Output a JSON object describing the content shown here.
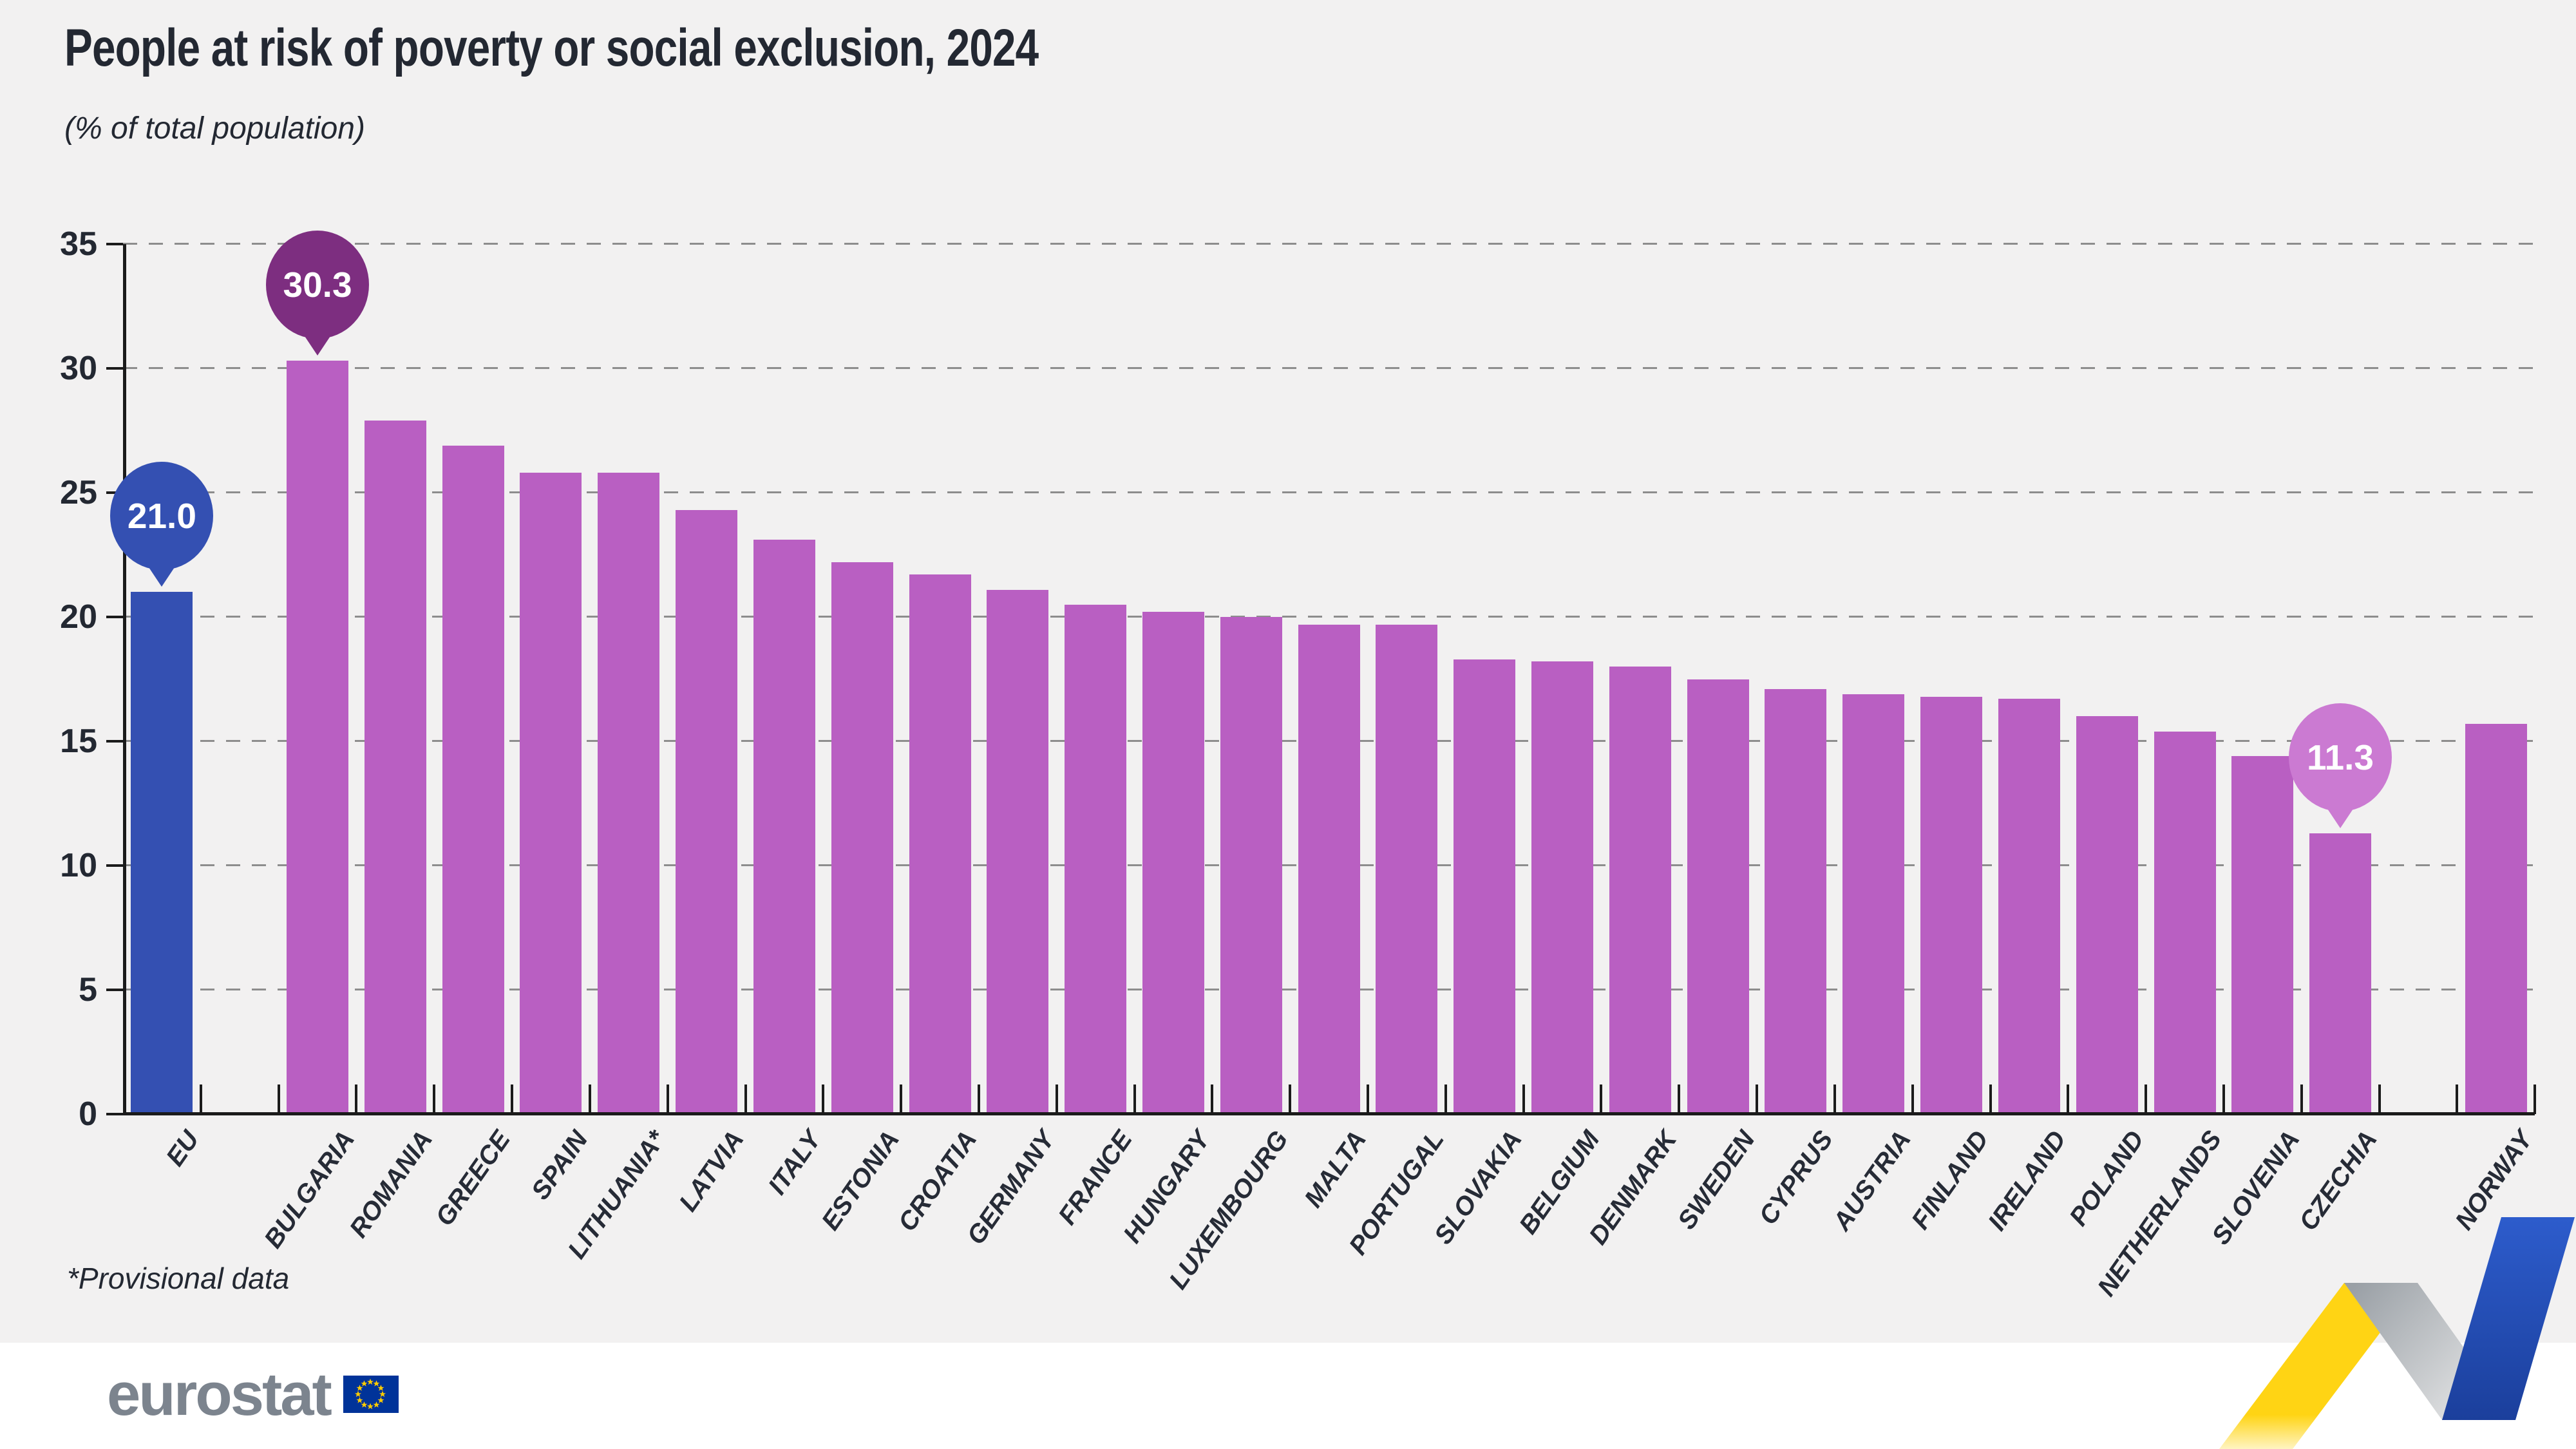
{
  "title": "People at risk of poverty or social exclusion, 2024",
  "subtitle": "(% of total population)",
  "footnote": "*Provisional data",
  "logo_text": "eurostat",
  "colors": {
    "background": "#f2f1f1",
    "bar": "#b95fc2",
    "eu_bar": "#3450b2",
    "callout_eu": "#3450b2",
    "callout_high": "#7d2e80",
    "callout_low": "#cb7ad2",
    "axis": "#1b1b1b",
    "grid": "#8d8d8d",
    "text": "#232832",
    "logo_grey": "#7c848e",
    "flag_blue": "#003399",
    "star_yellow": "#ffcc00",
    "ribbon_yellow": "#ffd414",
    "ribbon_grey": "#9aa0a6",
    "ribbon_blue": "#2d5ccc"
  },
  "chart_data": {
    "type": "bar",
    "title": "People at risk of poverty or social exclusion, 2024",
    "subtitle": "(% of total population)",
    "xlabel": "",
    "ylabel": "% of total population",
    "ylim": [
      0,
      35
    ],
    "yticks": [
      0,
      5,
      10,
      15,
      20,
      25,
      30,
      35
    ],
    "grid": "horizontal dashed",
    "legend": "none",
    "categories": [
      "EU",
      "BULGARIA",
      "ROMANIA",
      "GREECE",
      "SPAIN",
      "LITHUANIA*",
      "LATVIA",
      "ITALY",
      "ESTONIA",
      "CROATIA",
      "GERMANY",
      "FRANCE",
      "HUNGARY",
      "LUXEMBOURG",
      "MALTA",
      "PORTUGAL",
      "SLOVAKIA",
      "BELGIUM",
      "DENMARK",
      "SWEDEN",
      "CYPRUS",
      "AUSTRIA",
      "FINLAND",
      "IRELAND",
      "POLAND",
      "NETHERLANDS",
      "SLOVENIA",
      "CZECHIA",
      "NORWAY"
    ],
    "values": [
      21.0,
      30.3,
      27.9,
      26.9,
      25.8,
      25.8,
      24.3,
      23.1,
      22.2,
      21.7,
      21.1,
      20.5,
      20.2,
      20.0,
      19.7,
      19.7,
      18.3,
      18.2,
      18.0,
      17.5,
      17.1,
      16.9,
      16.8,
      16.7,
      16.0,
      15.4,
      14.4,
      11.3,
      15.7
    ],
    "gaps_after": [
      "EU",
      "CZECHIA"
    ],
    "callouts": [
      {
        "category": "EU",
        "label": "21.0",
        "style": "eu"
      },
      {
        "category": "BULGARIA",
        "label": "30.3",
        "style": "high"
      },
      {
        "category": "CZECHIA",
        "label": "11.3",
        "style": "low"
      }
    ]
  }
}
